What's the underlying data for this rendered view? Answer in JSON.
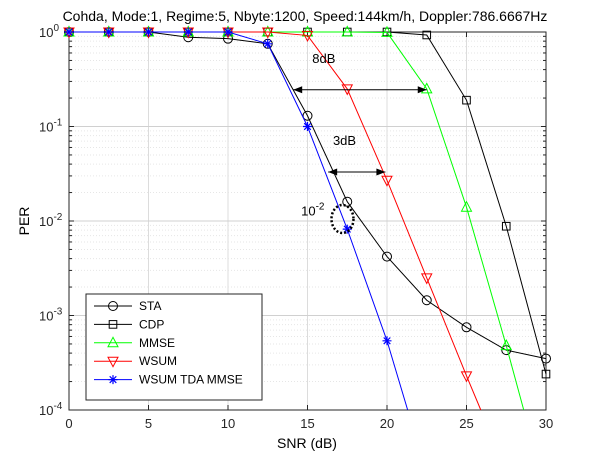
{
  "chart_data": {
    "type": "line",
    "title": "Cohda, Mode:1, Regime:5, Nbyte:1200, Speed:144km/h, Doppler:786.6667Hz",
    "xlabel": "SNR (dB)",
    "ylabel": "PER",
    "xlim": [
      0,
      30
    ],
    "ylim": [
      0.0001,
      1
    ],
    "yscale": "log",
    "grid": true,
    "legend_position": "bottom-left",
    "x_ticks": [
      "0",
      "5",
      "10",
      "15",
      "20",
      "25",
      "30"
    ],
    "y_ticks": [
      {
        "base": "10",
        "exp": "-4"
      },
      {
        "base": "10",
        "exp": "-3"
      },
      {
        "base": "10",
        "exp": "-2"
      },
      {
        "base": "10",
        "exp": "-1"
      },
      {
        "base": "10",
        "exp": "0"
      }
    ],
    "series": [
      {
        "name": "STA",
        "color": "#000000",
        "marker": "circle",
        "x": [
          0,
          2.5,
          5,
          7.5,
          10,
          12.5,
          15,
          17.5,
          20,
          22.5,
          25,
          27.5,
          30
        ],
        "y": [
          1,
          1,
          1,
          0.88,
          0.85,
          0.75,
          0.13,
          0.016,
          0.0042,
          0.00145,
          0.00075,
          0.00043,
          0.00035
        ]
      },
      {
        "name": "CDP",
        "color": "#000000",
        "marker": "square",
        "x": [
          0,
          2.5,
          5,
          7.5,
          10,
          12.5,
          15,
          17.5,
          20,
          22.5,
          25,
          27.5,
          30
        ],
        "y": [
          1,
          1,
          1,
          1,
          1,
          1,
          1,
          1,
          1,
          0.93,
          0.19,
          0.0088,
          0.00024
        ]
      },
      {
        "name": "MMSE",
        "color": "#00ff00",
        "marker": "triangle-up",
        "x": [
          0,
          2.5,
          5,
          7.5,
          10,
          12.5,
          15,
          17.5,
          20,
          22.5,
          25,
          27.5,
          28.6
        ],
        "y": [
          1,
          1,
          1,
          1,
          1,
          1,
          1,
          1,
          0.99,
          0.25,
          0.014,
          0.00048,
          0.0001
        ]
      },
      {
        "name": "WSUM",
        "color": "#ff0000",
        "marker": "triangle-down",
        "x": [
          0,
          2.5,
          5,
          7.5,
          10,
          12.5,
          15,
          17.5,
          20,
          22.5,
          25,
          25.9
        ],
        "y": [
          1,
          1,
          1,
          1,
          1,
          1,
          0.92,
          0.25,
          0.027,
          0.0025,
          0.00023,
          0.0001
        ]
      },
      {
        "name": "WSUM TDA MMSE",
        "color": "#0000ff",
        "marker": "asterisk",
        "x": [
          0,
          2.5,
          5,
          7.5,
          10,
          12.5,
          15,
          17.5,
          20,
          21.3
        ],
        "y": [
          1,
          1,
          1,
          1,
          1,
          0.75,
          0.1,
          0.0082,
          0.00054,
          0.0001
        ]
      }
    ],
    "annotations": [
      {
        "text": "8dB",
        "type": "double-arrow",
        "x1": 14.1,
        "x2": 22.5,
        "y": 0.245,
        "text_x": 15.3,
        "text_y": 0.47
      },
      {
        "text": "3dB",
        "type": "double-arrow",
        "x1": 16.3,
        "x2": 19.9,
        "y": 0.033,
        "text_x": 16.6,
        "text_y": 0.064
      },
      {
        "text": "10",
        "sup": "-2",
        "type": "dotted-ellipse",
        "cx": 17.2,
        "cy": 0.0105,
        "text_x": 14.6,
        "text_y": 0.0115
      }
    ]
  }
}
